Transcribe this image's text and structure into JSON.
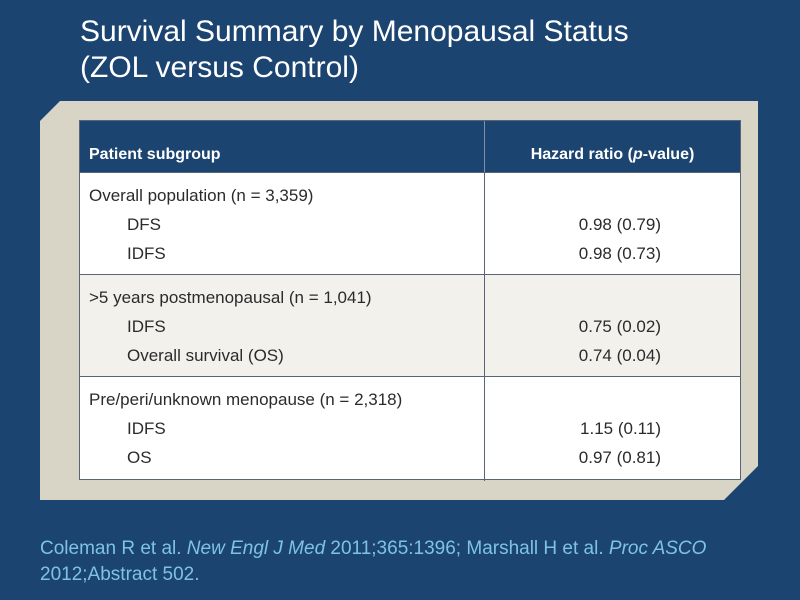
{
  "slide": {
    "title_line1": "Survival Summary by Menopausal Status",
    "title_line2": "(ZOL versus Control)"
  },
  "table": {
    "headers": {
      "col1": "Patient subgroup",
      "col2_prefix": "Hazard ratio (",
      "col2_italic": "p",
      "col2_suffix": "-value)"
    },
    "groups": [
      {
        "label": "Overall population (n = 3,359)",
        "rows": [
          {
            "name": "DFS",
            "value": "0.98 (0.79)"
          },
          {
            "name": "IDFS",
            "value": "0.98 (0.73)"
          }
        ]
      },
      {
        "label": ">5 years postmenopausal (n = 1,041)",
        "rows": [
          {
            "name": "IDFS",
            "value": "0.75 (0.02)"
          },
          {
            "name": "Overall survival (OS)",
            "value": "0.74 (0.04)"
          }
        ]
      },
      {
        "label": "Pre/peri/unknown menopause (n = 2,318)",
        "rows": [
          {
            "name": "IDFS",
            "value": "1.15 (0.11)"
          },
          {
            "name": "OS",
            "value": "0.97 (0.81)"
          }
        ]
      }
    ]
  },
  "citation": {
    "part1": "Coleman R et al. ",
    "journal1": "New Engl J Med",
    "part2": " 2011;365:1396; Marshall H et al. ",
    "journal2": "Proc ASCO",
    "part3": " 2012;Abstract 502."
  },
  "colors": {
    "background": "#1b4470",
    "panel": "#d8d4c6",
    "header_fill": "#1b4470",
    "citation_text": "#7ec2e8",
    "shaded_row": "#f3f1ec"
  }
}
